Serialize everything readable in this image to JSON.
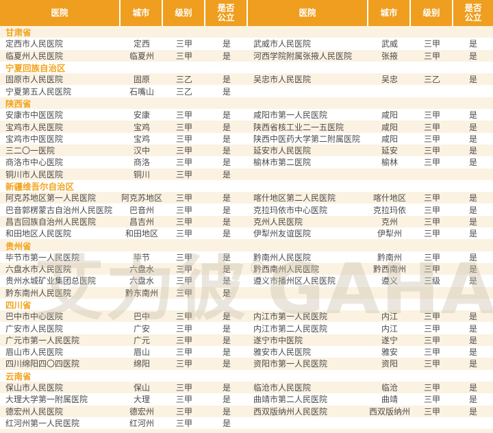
{
  "table": {
    "header_columns": [
      "医院",
      "城市",
      "级别",
      "是否公立"
    ],
    "left_rows": [
      {
        "type": "section",
        "label": "甘肃省"
      },
      {
        "type": "data",
        "hospital": "定西市人民医院",
        "city": "定西",
        "level": "三甲",
        "public": "是"
      },
      {
        "type": "data",
        "hospital": "临夏州人民医院",
        "city": "临夏州",
        "level": "三甲",
        "public": "是"
      },
      {
        "type": "section",
        "label": "宁夏回族自治区"
      },
      {
        "type": "data",
        "hospital": "固原市人民医院",
        "city": "固原",
        "level": "三乙",
        "public": "是"
      },
      {
        "type": "data",
        "hospital": "宁夏第五人民医院",
        "city": "石嘴山",
        "level": "三乙",
        "public": "是"
      },
      {
        "type": "section",
        "label": "陕西省"
      },
      {
        "type": "data",
        "hospital": "安康市中医医院",
        "city": "安康",
        "level": "三甲",
        "public": "是"
      },
      {
        "type": "data",
        "hospital": "宝鸡市人民医院",
        "city": "宝鸡",
        "level": "三甲",
        "public": "是"
      },
      {
        "type": "data",
        "hospital": "宝鸡市中医医院",
        "city": "宝鸡",
        "level": "三甲",
        "public": "是"
      },
      {
        "type": "data",
        "hospital": "三二〇一医院",
        "city": "汉中",
        "level": "三甲",
        "public": "是"
      },
      {
        "type": "data",
        "hospital": "商洛市中心医院",
        "city": "商洛",
        "level": "三甲",
        "public": "是"
      },
      {
        "type": "data",
        "hospital": "铜川市人民医院",
        "city": "铜川",
        "level": "三甲",
        "public": "是"
      },
      {
        "type": "section",
        "label": "新疆维吾尔自治区"
      },
      {
        "type": "data",
        "hospital": "阿克苏地区第一人民医院",
        "city": "阿克苏地区",
        "level": "三甲",
        "public": "是"
      },
      {
        "type": "data",
        "hospital": "巴音郭楞蒙古自治州人民医院",
        "city": "巴音州",
        "level": "三甲",
        "public": "是"
      },
      {
        "type": "data",
        "hospital": "昌吉回族自治州人民医院",
        "city": "昌吉州",
        "level": "三甲",
        "public": "是"
      },
      {
        "type": "data",
        "hospital": "和田地区人民医院",
        "city": "和田地区",
        "level": "三甲",
        "public": "是"
      },
      {
        "type": "section",
        "label": "贵州省"
      },
      {
        "type": "data",
        "hospital": "毕节市第一人民医院",
        "city": "毕节",
        "level": "三甲",
        "public": "是"
      },
      {
        "type": "data",
        "hospital": "六盘水市人民医院",
        "city": "六盘水",
        "level": "三甲",
        "public": "是"
      },
      {
        "type": "data",
        "hospital": "贵州水城矿业集团总医院",
        "city": "六盘水",
        "level": "三甲",
        "public": "是"
      },
      {
        "type": "data",
        "hospital": "黔东南州人民医院",
        "city": "黔东南州",
        "level": "三甲",
        "public": "是"
      },
      {
        "type": "section",
        "label": "四川省"
      },
      {
        "type": "data",
        "hospital": "巴中市中心医院",
        "city": "巴中",
        "level": "三甲",
        "public": "是"
      },
      {
        "type": "data",
        "hospital": "广安市人民医院",
        "city": "广安",
        "level": "三甲",
        "public": "是"
      },
      {
        "type": "data",
        "hospital": "广元市第一人民医院",
        "city": "广元",
        "level": "三甲",
        "public": "是"
      },
      {
        "type": "data",
        "hospital": "眉山市人民医院",
        "city": "眉山",
        "level": "三甲",
        "public": "是"
      },
      {
        "type": "data",
        "hospital": "四川绵阳四〇四医院",
        "city": "绵阳",
        "level": "三甲",
        "public": "是"
      },
      {
        "type": "section",
        "label": "云南省"
      },
      {
        "type": "data",
        "hospital": "保山市人民医院",
        "city": "保山",
        "level": "三甲",
        "public": "是"
      },
      {
        "type": "data",
        "hospital": "大理大学第一附属医院",
        "city": "大理",
        "level": "三甲",
        "public": "是"
      },
      {
        "type": "data",
        "hospital": "德宏州人民医院",
        "city": "德宏州",
        "level": "三甲",
        "public": "是"
      },
      {
        "type": "data",
        "hospital": "红河州第一人民医院",
        "city": "红河州",
        "level": "三甲",
        "public": "是"
      }
    ],
    "right_rows": [
      {
        "type": "empty"
      },
      {
        "type": "data",
        "hospital": "武威市人民医院",
        "city": "武威",
        "level": "三甲",
        "public": "是"
      },
      {
        "type": "data",
        "hospital": "河西学院附属张掖人民医院",
        "city": "张掖",
        "level": "三甲",
        "public": "是"
      },
      {
        "type": "empty"
      },
      {
        "type": "data",
        "hospital": "吴忠市人民医院",
        "city": "吴忠",
        "level": "三乙",
        "public": "是"
      },
      {
        "type": "empty"
      },
      {
        "type": "empty"
      },
      {
        "type": "data",
        "hospital": "咸阳市第一人民医院",
        "city": "咸阳",
        "level": "三甲",
        "public": "是"
      },
      {
        "type": "data",
        "hospital": "陕西省核工业二一五医院",
        "city": "咸阳",
        "level": "三甲",
        "public": "是"
      },
      {
        "type": "data",
        "hospital": "陕西中医药大学第二附属医院",
        "city": "咸阳",
        "level": "三甲",
        "public": "是"
      },
      {
        "type": "data",
        "hospital": "延安市人民医院",
        "city": "延安",
        "level": "三甲",
        "public": "是"
      },
      {
        "type": "data",
        "hospital": "榆林市第二医院",
        "city": "榆林",
        "level": "三甲",
        "public": "是"
      },
      {
        "type": "empty"
      },
      {
        "type": "empty"
      },
      {
        "type": "data",
        "hospital": "喀什地区第二人民医院",
        "city": "喀什地区",
        "level": "三甲",
        "public": "是"
      },
      {
        "type": "data",
        "hospital": "克拉玛依市中心医院",
        "city": "克拉玛依",
        "level": "三甲",
        "public": "是"
      },
      {
        "type": "data",
        "hospital": "克州人民医院",
        "city": "克州",
        "level": "三甲",
        "public": "是"
      },
      {
        "type": "data",
        "hospital": "伊犁州友谊医院",
        "city": "伊犁州",
        "level": "三甲",
        "public": "是"
      },
      {
        "type": "empty"
      },
      {
        "type": "data",
        "hospital": "黔南州人民医院",
        "city": "黔南州",
        "level": "三甲",
        "public": "是"
      },
      {
        "type": "data",
        "hospital": "黔西南州人民医院",
        "city": "黔西南州",
        "level": "三甲",
        "public": "是"
      },
      {
        "type": "data",
        "hospital": "遵义市播州区人民医院",
        "city": "遵义",
        "level": "三级",
        "public": "是"
      },
      {
        "type": "empty"
      },
      {
        "type": "empty"
      },
      {
        "type": "data",
        "hospital": "内江市第一人民医院",
        "city": "内江",
        "level": "三甲",
        "public": "是"
      },
      {
        "type": "data",
        "hospital": "内江市第二人民医院",
        "city": "内江",
        "level": "三甲",
        "public": "是"
      },
      {
        "type": "data",
        "hospital": "遂宁市中医院",
        "city": "遂宁",
        "level": "三甲",
        "public": "是"
      },
      {
        "type": "data",
        "hospital": "雅安市人民医院",
        "city": "雅安",
        "level": "三甲",
        "public": "是"
      },
      {
        "type": "data",
        "hospital": "资阳市第一人民医院",
        "city": "资阳",
        "level": "三甲",
        "public": "是"
      },
      {
        "type": "empty"
      },
      {
        "type": "data",
        "hospital": "临沧市人民医院",
        "city": "临沧",
        "level": "三甲",
        "public": "是"
      },
      {
        "type": "data",
        "hospital": "曲靖市第二人民医院",
        "city": "曲靖",
        "level": "三甲",
        "public": "是"
      },
      {
        "type": "data",
        "hospital": "西双版纳州人民医院",
        "city": "西双版纳州",
        "level": "三甲",
        "public": "是"
      },
      {
        "type": "empty"
      }
    ]
  },
  "watermark": {
    "brand_cn": "艾力彼",
    "brand_en": "GAHA",
    "reg": "®"
  },
  "colors": {
    "header_bg": "#EF9E1F",
    "header_text": "#FFFFFF",
    "section_text": "#F2A41D",
    "row_stripe": "#FBF2E2",
    "row_alt": "#FFFFFF",
    "body_text": "#4B4B4B",
    "watermark": "#C7BCA8"
  }
}
